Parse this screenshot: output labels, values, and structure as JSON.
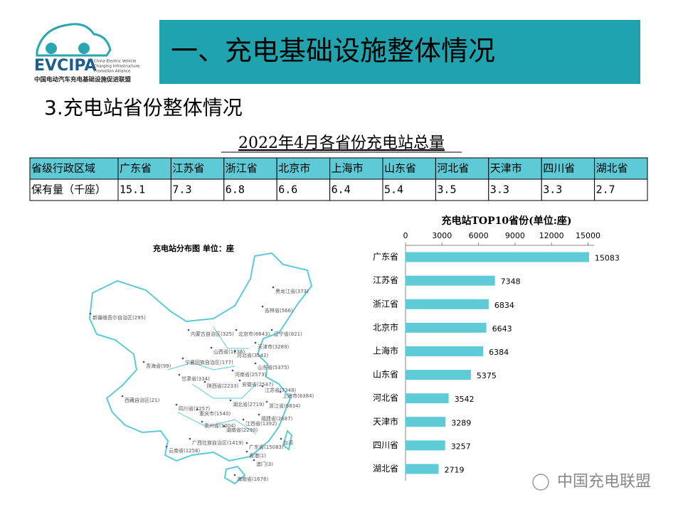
{
  "logo": {
    "name": "EVCIPA",
    "english": [
      "China Electric Vehicle",
      "Charging Infrastructure",
      "Promotion Alliance"
    ],
    "chinese": "中国电动汽车充电基础设施促进联盟"
  },
  "header": {
    "title": "一、充电基础设施整体情况"
  },
  "subtitle": "3.充电站省份整体情况",
  "table": {
    "title": "2022年4月各省份充电站总量",
    "header": [
      "省级行政区域",
      "广东省",
      "江苏省",
      "浙江省",
      "北京市",
      "上海市",
      "山东省",
      "河北省",
      "天津市",
      "四川省",
      "湖北省"
    ],
    "rows": [
      [
        "保有量（千座）",
        15.1,
        7.3,
        6.8,
        6.6,
        6.4,
        5.4,
        3.5,
        3.3,
        3.3,
        2.7
      ]
    ]
  },
  "map": {
    "title": "充电站分布图   单位：座",
    "labels": [
      "黑龙江省(373)",
      "吉林省(566)",
      "新疆维吾尔自治区(295)",
      "内蒙古自治区(325)",
      "北京市(6643)",
      "辽宁省(821)",
      "天津市(3289)",
      "山西省(1236)",
      "河北省(3542)",
      "宁夏回族自治区(177)",
      "山东省(5375)",
      "青海省(99)",
      "甘肃省(334)",
      "河南省(2573)",
      "安徽省(2547)",
      "陕西省(2233)",
      "江苏省(7348)",
      "上海市(6384)",
      "湖北省(2719)",
      "浙江省(6834)",
      "西藏自治区(21)",
      "四川省(3257)",
      "重庆市(1540)",
      "福建省(2687)",
      "江西省(1392)",
      "贵州省(1204)",
      "湖南省(2290)",
      "广西壮族自治区(1419)",
      "云南省(1256)",
      "广东省(15083)",
      "台湾",
      "香港(1)",
      "澳门(3)",
      "海南省(1676)"
    ]
  },
  "chart_data": {
    "type": "hbar",
    "title": "充电站TOP10省份(单位:座)",
    "categories": [
      "广东省",
      "江苏省",
      "浙江省",
      "北京市",
      "上海市",
      "山东省",
      "河北省",
      "天津市",
      "四川省",
      "湖北省"
    ],
    "values": [
      15083,
      7348,
      6834,
      6643,
      6384,
      5375,
      3542,
      3289,
      3257,
      2719
    ],
    "color": "#5ecbd6",
    "xlim": [
      0,
      15500
    ],
    "xticks": [
      0,
      3000,
      6000,
      9000,
      12000,
      15000
    ]
  },
  "watermark": "中国充电联盟"
}
